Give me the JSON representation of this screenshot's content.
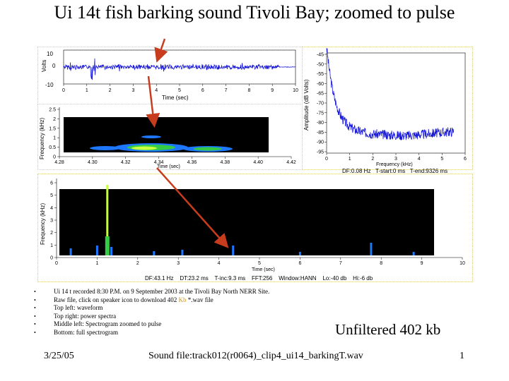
{
  "title": "Ui 14t fish barking sound Tivoli Bay; zoomed to pulse",
  "waveform": {
    "ylabel": "Volts",
    "xlabel": "Time (sec)",
    "y_ticks": [
      "10",
      "0",
      "-10"
    ],
    "x_ticks": [
      "0",
      "1",
      "2",
      "3",
      "4",
      "5",
      "6",
      "7",
      "8",
      "9",
      "10"
    ]
  },
  "spectrogram_zoom": {
    "ylabel": "Frequency (kHz)",
    "xlabel": "Time (sec)",
    "y_ticks": [
      "2.5",
      "2",
      "1.5",
      "1",
      "0.5",
      "0"
    ],
    "x_ticks": [
      "4.28",
      "4.30",
      "4.32",
      "4.34",
      "4.36",
      "4.38",
      "4.40",
      "4.42"
    ]
  },
  "power_spectrum": {
    "ylabel": "Amplitude (dB Volts)",
    "xlabel": "Frequency (kHz)",
    "y_ticks": [
      "-45",
      "-50",
      "-55",
      "-60",
      "-65",
      "-70",
      "-75",
      "-80",
      "-85",
      "-90",
      "-95"
    ],
    "x_ticks": [
      "0",
      "1",
      "2",
      "3",
      "4",
      "5",
      "6"
    ],
    "info": "DF:0.08 Hz   T-start:0 ms   T-end:9326 ms"
  },
  "spectrogram_full": {
    "ylabel": "Frequency (kHz)",
    "xlabel": "Time (sec)",
    "y_ticks": [
      "6",
      "5",
      "4",
      "3",
      "2",
      "1",
      "0"
    ],
    "x_ticks": [
      "0",
      "1",
      "2",
      "3",
      "4",
      "5",
      "6",
      "7",
      "8",
      "9",
      "10"
    ],
    "info": "DF:43.1 Hz    DT:23.2 ms    T-inc:9.3 ms    FFT:256    Window:HANN    Lo:-40 db    Hi:-6 db"
  },
  "bullets": {
    "b1": "Ui 14 t recorded 8:30 P.M. on 9 September 2003 at the Tivoli Bay North NERR Site.",
    "b2_pre": "Raw file, click on speaker icon to download 402 ",
    "b2_kb": "Kb",
    "b2_post": " *.wav file",
    "b3": "Top left: waveform",
    "b4": "Top right: power spectra",
    "b5": "Middle left: Spectrogram zoomed to pulse",
    "b6": "Bottom: full spectrogram",
    "dot": "•"
  },
  "unfiltered": "Unfiltered 402 kb",
  "footer": {
    "date": "3/25/05",
    "sound_file": "Sound file:track012(r0064)_clip4_ui14_barkingT.wav",
    "page": "1"
  },
  "colors": {
    "signal": "#1a1ad8",
    "arrow": "#c83c1e",
    "spectrogram_bg": "#000000"
  }
}
